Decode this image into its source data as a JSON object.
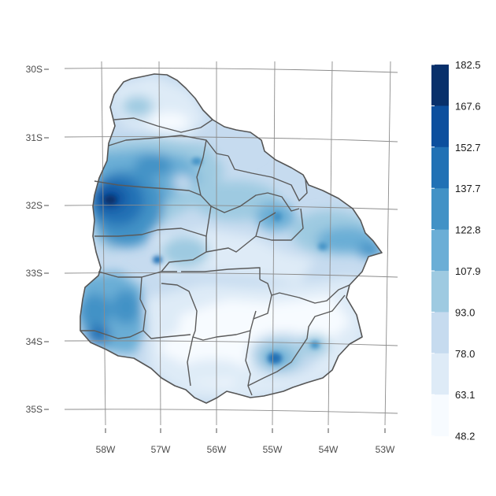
{
  "map": {
    "lat_ticks": [
      "30S",
      "31S",
      "32S",
      "33S",
      "34S",
      "35S"
    ],
    "lon_ticks": [
      "58W",
      "57W",
      "56W",
      "55W",
      "54W",
      "53W"
    ]
  },
  "legend": {
    "labels": [
      "182.5",
      "167.6",
      "152.7",
      "137.7",
      "122.8",
      "107.9",
      "93.0",
      "78.0",
      "63.1",
      "48.2"
    ],
    "colors": [
      "#08306b",
      "#0c4f9e",
      "#2171b5",
      "#4292c6",
      "#6baed6",
      "#9ecae1",
      "#c6dbef",
      "#deebf7",
      "#f7fbff"
    ]
  },
  "chart_data": {
    "type": "heatmap",
    "region": "Uruguay",
    "lat_range": [
      -35,
      -30
    ],
    "lon_range": [
      -58,
      -53
    ],
    "value_range": [
      48.2,
      182.5
    ],
    "color_breaks": [
      48.2,
      63.1,
      78.0,
      93.0,
      107.9,
      122.8,
      137.7,
      152.7,
      167.6,
      182.5
    ],
    "highs": [
      {
        "lat": -32,
        "lon": -57.9,
        "level": "167.6-182.5"
      },
      {
        "lat": -34.3,
        "lon": -54.9,
        "level": "152.7-167.6"
      },
      {
        "lat": -32.1,
        "lon": -54.9,
        "level": "122.8-137.7"
      },
      {
        "lat": -32.6,
        "lon": -53.3,
        "level": "122.8-137.7"
      }
    ],
    "lows": [
      {
        "lat": -33.8,
        "lon": -55.5,
        "level": "48.2-63.1"
      },
      {
        "lat": -30.8,
        "lon": -56.5,
        "level": "63.1-78.0"
      }
    ]
  }
}
